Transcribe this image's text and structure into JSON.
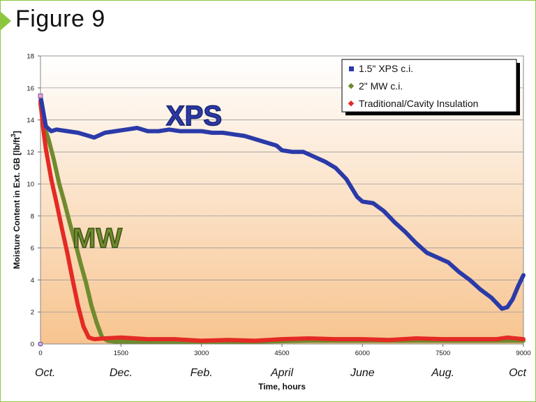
{
  "figure_title": "Figure 9",
  "colors": {
    "xps": "#2b3aa8",
    "mw": "#6f8b2e",
    "trad": "#e42a24",
    "frame": "#8cc63f",
    "bg_top": "#ffffff",
    "bg_bottom": "#f7c48f"
  },
  "annotations": {
    "xps": "XPS",
    "mw": "MW"
  },
  "chart_data": {
    "type": "line",
    "xlabel": "Time, hours",
    "ylabel": "Moisture Content in Ext. GB [lb/ft",
    "ylabel_sup": "3",
    "ylabel_close": "]",
    "xlim": [
      0,
      9000
    ],
    "ylim": [
      0,
      18
    ],
    "xticks": [
      0,
      1500,
      3000,
      4500,
      6000,
      7500,
      9000
    ],
    "xtick_labels": [
      "0",
      "1500",
      "3000",
      "4500",
      "6000",
      "7500",
      "9000"
    ],
    "yticks": [
      0,
      2,
      4,
      6,
      8,
      10,
      12,
      14,
      16,
      18
    ],
    "ytick_labels": [
      "0",
      "2",
      "4",
      "6",
      "8",
      "10",
      "12",
      "14",
      "16",
      "18"
    ],
    "month_labels": [
      {
        "x": 0,
        "label": "Oct."
      },
      {
        "x": 1500,
        "label": "Dec."
      },
      {
        "x": 3000,
        "label": "Feb."
      },
      {
        "x": 4500,
        "label": "April"
      },
      {
        "x": 6000,
        "label": "June"
      },
      {
        "x": 7500,
        "label": "Aug."
      },
      {
        "x": 9000,
        "label": "Oct"
      }
    ],
    "grid": "horizontal",
    "legend_position": "top-right",
    "series": [
      {
        "name": "1.5\" XPS c.i.",
        "key": "xps",
        "x": [
          0,
          100,
          200,
          300,
          500,
          700,
          900,
          1000,
          1200,
          1400,
          1600,
          1800,
          2000,
          2200,
          2400,
          2600,
          2800,
          3000,
          3200,
          3400,
          3600,
          3800,
          4000,
          4200,
          4400,
          4500,
          4700,
          4900,
          5100,
          5300,
          5500,
          5700,
          5900,
          6000,
          6200,
          6400,
          6600,
          6800,
          7000,
          7200,
          7400,
          7600,
          7800,
          8000,
          8200,
          8400,
          8600,
          8700,
          8800,
          8900,
          9000
        ],
        "y": [
          15.5,
          13.6,
          13.3,
          13.4,
          13.3,
          13.2,
          13.0,
          12.9,
          13.2,
          13.3,
          13.4,
          13.5,
          13.3,
          13.3,
          13.4,
          13.3,
          13.3,
          13.3,
          13.2,
          13.2,
          13.1,
          13.0,
          12.8,
          12.6,
          12.4,
          12.1,
          12.0,
          12.0,
          11.7,
          11.4,
          11.0,
          10.3,
          9.2,
          8.9,
          8.8,
          8.3,
          7.6,
          7.0,
          6.3,
          5.7,
          5.4,
          5.1,
          4.5,
          4.0,
          3.4,
          2.9,
          2.2,
          2.3,
          2.8,
          3.6,
          4.3
        ]
      },
      {
        "name": "2\" MW c.i.",
        "key": "mw",
        "x": [
          0,
          50,
          150,
          250,
          350,
          450,
          550,
          650,
          750,
          850,
          950,
          1050,
          1150,
          1250,
          1400,
          2000,
          3000,
          4000,
          5000,
          6000,
          7000,
          8000,
          9000
        ],
        "y": [
          15.0,
          13.8,
          12.8,
          11.5,
          10.0,
          8.8,
          7.5,
          6.3,
          5.0,
          3.8,
          2.4,
          1.3,
          0.4,
          0.2,
          0.15,
          0.15,
          0.15,
          0.15,
          0.2,
          0.2,
          0.2,
          0.2,
          0.2
        ]
      },
      {
        "name": "Traditional/Cavity Insulation",
        "key": "trad",
        "x": [
          0,
          50,
          100,
          200,
          300,
          400,
          500,
          600,
          700,
          800,
          900,
          1000,
          1200,
          1500,
          2000,
          2500,
          3000,
          3500,
          4000,
          4500,
          5000,
          5500,
          6000,
          6500,
          7000,
          7500,
          8000,
          8500,
          8700,
          9000
        ],
        "y": [
          15.2,
          13.5,
          12.2,
          10.3,
          8.8,
          7.2,
          5.7,
          4.0,
          2.4,
          1.1,
          0.4,
          0.3,
          0.35,
          0.4,
          0.3,
          0.3,
          0.2,
          0.25,
          0.2,
          0.3,
          0.35,
          0.3,
          0.3,
          0.25,
          0.35,
          0.3,
          0.3,
          0.3,
          0.4,
          0.3
        ]
      }
    ]
  }
}
